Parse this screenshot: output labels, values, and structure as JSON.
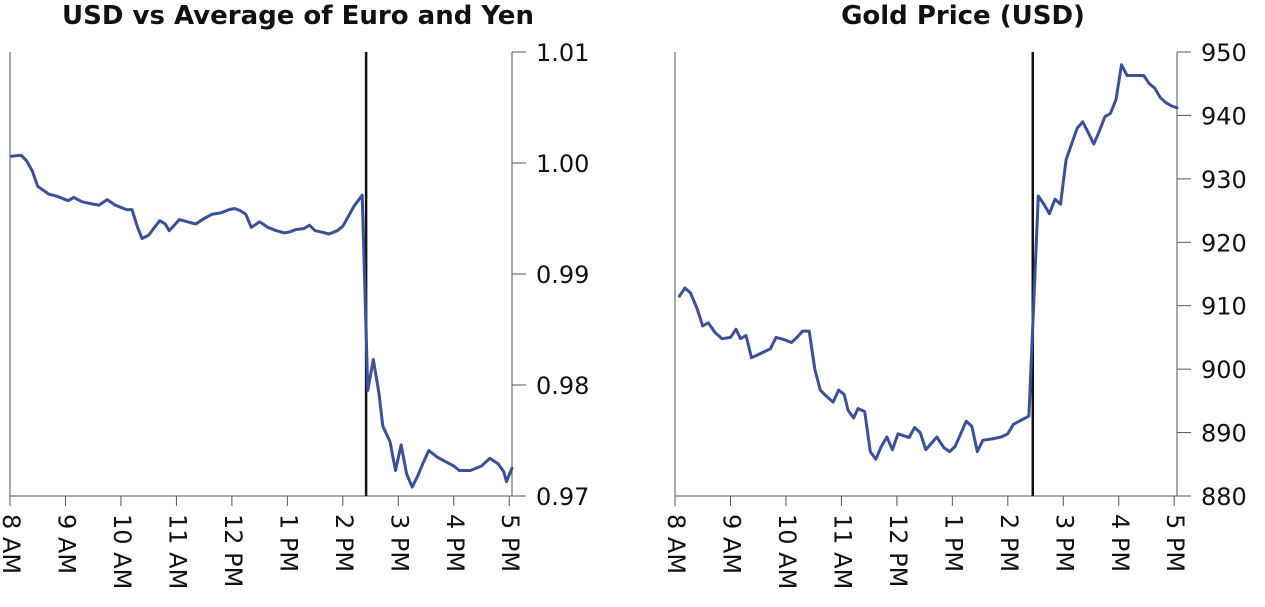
{
  "chart_data": [
    {
      "type": "line",
      "title": "USD vs Average of Euro and Yen",
      "xlabel": "",
      "ylabel": "",
      "x_ticks": [
        {
          "value": 8,
          "label": "8 AM"
        },
        {
          "value": 9,
          "label": "9 AM"
        },
        {
          "value": 10,
          "label": "10 AM"
        },
        {
          "value": 11,
          "label": "11 AM"
        },
        {
          "value": 12,
          "label": "12 PM"
        },
        {
          "value": 13,
          "label": "1 PM"
        },
        {
          "value": 14,
          "label": "2 PM"
        },
        {
          "value": 15,
          "label": "3 PM"
        },
        {
          "value": 16,
          "label": "4 PM"
        },
        {
          "value": 17,
          "label": "5 PM"
        }
      ],
      "xlim": [
        8,
        17.05
      ],
      "y_ticks": [
        {
          "value": 0.97,
          "label": "0.97"
        },
        {
          "value": 0.98,
          "label": "0.98"
        },
        {
          "value": 0.99,
          "label": "0.99"
        },
        {
          "value": 1.0,
          "label": "1.00"
        },
        {
          "value": 1.01,
          "label": "1.01"
        }
      ],
      "ylim": [
        0.97,
        1.01
      ],
      "y_axis_side": "right",
      "grid": false,
      "event_line_x": 14.42,
      "series": [
        {
          "color": "#3a5199",
          "points": [
            [
              8.02,
              1.0006
            ],
            [
              8.2,
              1.0007
            ],
            [
              8.3,
              1.0002
            ],
            [
              8.4,
              0.9993
            ],
            [
              8.5,
              0.9979
            ],
            [
              8.7,
              0.9972
            ],
            [
              8.85,
              0.997
            ],
            [
              9.05,
              0.9966
            ],
            [
              9.15,
              0.9969
            ],
            [
              9.3,
              0.9965
            ],
            [
              9.5,
              0.9963
            ],
            [
              9.6,
              0.9962
            ],
            [
              9.75,
              0.9967
            ],
            [
              9.9,
              0.9962
            ],
            [
              10.1,
              0.9958
            ],
            [
              10.2,
              0.9958
            ],
            [
              10.3,
              0.9942
            ],
            [
              10.38,
              0.9932
            ],
            [
              10.5,
              0.9935
            ],
            [
              10.62,
              0.9943
            ],
            [
              10.7,
              0.9948
            ],
            [
              10.8,
              0.9945
            ],
            [
              10.87,
              0.9939
            ],
            [
              11.0,
              0.9946
            ],
            [
              11.05,
              0.9949
            ],
            [
              11.2,
              0.9947
            ],
            [
              11.35,
              0.9945
            ],
            [
              11.5,
              0.995
            ],
            [
              11.65,
              0.9954
            ],
            [
              11.8,
              0.9955
            ],
            [
              11.95,
              0.9958
            ],
            [
              12.05,
              0.9959
            ],
            [
              12.15,
              0.9957
            ],
            [
              12.25,
              0.9954
            ],
            [
              12.35,
              0.9942
            ],
            [
              12.5,
              0.9947
            ],
            [
              12.65,
              0.9942
            ],
            [
              12.8,
              0.9939
            ],
            [
              12.95,
              0.9937
            ],
            [
              13.05,
              0.9938
            ],
            [
              13.15,
              0.994
            ],
            [
              13.3,
              0.9941
            ],
            [
              13.4,
              0.9944
            ],
            [
              13.5,
              0.9939
            ],
            [
              13.6,
              0.9938
            ],
            [
              13.75,
              0.9936
            ],
            [
              13.9,
              0.9939
            ],
            [
              14.0,
              0.9943
            ],
            [
              14.1,
              0.9952
            ],
            [
              14.2,
              0.9961
            ],
            [
              14.35,
              0.9971
            ],
            [
              14.45,
              0.9795
            ],
            [
              14.55,
              0.9823
            ],
            [
              14.65,
              0.9793
            ],
            [
              14.72,
              0.9763
            ],
            [
              14.85,
              0.9749
            ],
            [
              14.95,
              0.9723
            ],
            [
              15.05,
              0.9746
            ],
            [
              15.15,
              0.972
            ],
            [
              15.25,
              0.9708
            ],
            [
              15.35,
              0.9718
            ],
            [
              15.45,
              0.973
            ],
            [
              15.55,
              0.9741
            ],
            [
              15.7,
              0.9735
            ],
            [
              15.85,
              0.9731
            ],
            [
              16.0,
              0.9727
            ],
            [
              16.1,
              0.9723
            ],
            [
              16.3,
              0.9723
            ],
            [
              16.5,
              0.9727
            ],
            [
              16.65,
              0.9734
            ],
            [
              16.8,
              0.9729
            ],
            [
              16.9,
              0.9722
            ],
            [
              16.95,
              0.9713
            ],
            [
              17.05,
              0.9725
            ]
          ]
        }
      ]
    },
    {
      "type": "line",
      "title": "Gold Price (USD)",
      "xlabel": "",
      "ylabel": "",
      "x_ticks": [
        {
          "value": 8,
          "label": "8 AM"
        },
        {
          "value": 9,
          "label": "9 AM"
        },
        {
          "value": 10,
          "label": "10 AM"
        },
        {
          "value": 11,
          "label": "11 AM"
        },
        {
          "value": 12,
          "label": "12 PM"
        },
        {
          "value": 13,
          "label": "1 PM"
        },
        {
          "value": 14,
          "label": "2 PM"
        },
        {
          "value": 15,
          "label": "3 PM"
        },
        {
          "value": 16,
          "label": "4 PM"
        },
        {
          "value": 17,
          "label": "5 PM"
        }
      ],
      "xlim": [
        8,
        17.05
      ],
      "y_ticks": [
        {
          "value": 880,
          "label": "880"
        },
        {
          "value": 890,
          "label": "890"
        },
        {
          "value": 900,
          "label": "900"
        },
        {
          "value": 910,
          "label": "910"
        },
        {
          "value": 920,
          "label": "920"
        },
        {
          "value": 930,
          "label": "930"
        },
        {
          "value": 940,
          "label": "940"
        },
        {
          "value": 950,
          "label": "950"
        }
      ],
      "ylim": [
        880,
        950
      ],
      "y_axis_side": "right",
      "grid": false,
      "event_line_x": 14.45,
      "series": [
        {
          "color": "#3a5199",
          "points": [
            [
              8.08,
              911.5
            ],
            [
              8.18,
              912.8
            ],
            [
              8.28,
              912.0
            ],
            [
              8.4,
              909.5
            ],
            [
              8.5,
              906.8
            ],
            [
              8.6,
              907.3
            ],
            [
              8.72,
              905.8
            ],
            [
              8.85,
              904.8
            ],
            [
              9.0,
              905.0
            ],
            [
              9.1,
              906.3
            ],
            [
              9.18,
              904.8
            ],
            [
              9.28,
              905.3
            ],
            [
              9.38,
              901.8
            ],
            [
              9.5,
              902.3
            ],
            [
              9.62,
              902.8
            ],
            [
              9.72,
              903.2
            ],
            [
              9.82,
              905.0
            ],
            [
              9.95,
              904.7
            ],
            [
              10.1,
              904.2
            ],
            [
              10.2,
              905.0
            ],
            [
              10.3,
              906.0
            ],
            [
              10.42,
              906.0
            ],
            [
              10.52,
              900.0
            ],
            [
              10.62,
              896.7
            ],
            [
              10.72,
              895.8
            ],
            [
              10.85,
              894.8
            ],
            [
              10.95,
              896.7
            ],
            [
              11.05,
              896.0
            ],
            [
              11.12,
              893.5
            ],
            [
              11.22,
              892.3
            ],
            [
              11.3,
              893.8
            ],
            [
              11.42,
              893.3
            ],
            [
              11.52,
              887.0
            ],
            [
              11.62,
              885.8
            ],
            [
              11.72,
              887.8
            ],
            [
              11.82,
              889.3
            ],
            [
              11.92,
              887.3
            ],
            [
              12.02,
              889.8
            ],
            [
              12.12,
              889.5
            ],
            [
              12.22,
              889.2
            ],
            [
              12.32,
              890.8
            ],
            [
              12.42,
              890.0
            ],
            [
              12.52,
              887.3
            ],
            [
              12.62,
              888.3
            ],
            [
              12.72,
              889.3
            ],
            [
              12.85,
              887.6
            ],
            [
              12.95,
              887.0
            ],
            [
              13.05,
              887.8
            ],
            [
              13.15,
              889.8
            ],
            [
              13.25,
              891.8
            ],
            [
              13.35,
              891.0
            ],
            [
              13.45,
              887.0
            ],
            [
              13.55,
              888.8
            ],
            [
              13.72,
              889.0
            ],
            [
              13.88,
              889.3
            ],
            [
              14.0,
              889.8
            ],
            [
              14.1,
              891.3
            ],
            [
              14.25,
              892.0
            ],
            [
              14.38,
              892.6
            ],
            [
              14.55,
              927.3
            ],
            [
              14.65,
              926.0
            ],
            [
              14.75,
              924.5
            ],
            [
              14.85,
              926.8
            ],
            [
              14.95,
              926.0
            ],
            [
              15.05,
              933.0
            ],
            [
              15.15,
              935.5
            ],
            [
              15.25,
              938.0
            ],
            [
              15.35,
              939.0
            ],
            [
              15.45,
              937.3
            ],
            [
              15.55,
              935.5
            ],
            [
              15.65,
              937.5
            ],
            [
              15.75,
              939.8
            ],
            [
              15.85,
              940.3
            ],
            [
              15.95,
              942.5
            ],
            [
              16.05,
              948.0
            ],
            [
              16.15,
              946.3
            ],
            [
              16.3,
              946.3
            ],
            [
              16.45,
              946.3
            ],
            [
              16.55,
              945.0
            ],
            [
              16.65,
              944.3
            ],
            [
              16.75,
              942.8
            ],
            [
              16.85,
              942.0
            ],
            [
              16.95,
              941.5
            ],
            [
              17.05,
              941.2
            ]
          ]
        }
      ]
    }
  ],
  "style": {
    "series_color": "#3a5199",
    "event_line_color": "#111111",
    "axis_color": "#555555",
    "text_color": "#111111"
  }
}
